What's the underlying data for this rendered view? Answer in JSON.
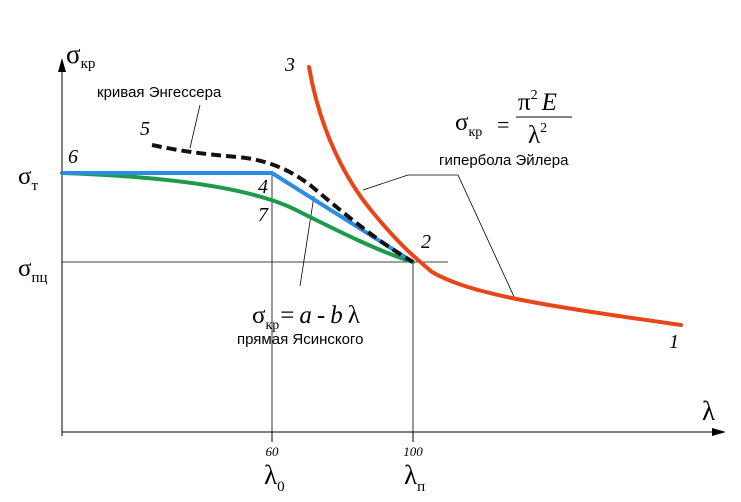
{
  "axes": {
    "y_symbol": "σ",
    "y_sub": "кр",
    "x_symbol": "λ"
  },
  "y_marks": {
    "sigma_t": {
      "symbol": "σ",
      "sub": "т"
    },
    "sigma_pts": {
      "symbol": "σ",
      "sub": "пц"
    }
  },
  "x_marks": {
    "tick_60": "60",
    "tick_100": "100",
    "lambda_0": {
      "symbol": "λ",
      "sub": "0"
    },
    "lambda_p": {
      "symbol": "λ",
      "sub": "п"
    }
  },
  "curve_numbers": {
    "n1": "1",
    "n2": "2",
    "n3": "3",
    "n4": "4",
    "n5": "5",
    "n6": "6",
    "n7": "7"
  },
  "labels": {
    "engesser": "кривая Энгессера",
    "euler": "гипербола Эйлера",
    "yasinsky": "прямая Ясинского"
  },
  "euler_formula": {
    "lhs_symbol": "σ",
    "lhs_sub": "кр",
    "eq": "=",
    "num_pi": "π",
    "num_exp": "2",
    "num_E": "E",
    "den_lambda": "λ",
    "den_exp": "2"
  },
  "yasinsky_formula": {
    "lhs_symbol": "σ",
    "lhs_sub": "кр",
    "rhs_eq": "=",
    "a": "a",
    "minus": "-",
    "b": "b",
    "lambda": "λ"
  },
  "colors": {
    "euler": "#e8451a",
    "yasinsky": "#2a8de0",
    "engesser": "#111111",
    "johnson_green": "#1f9a4a",
    "axes": "#000000"
  }
}
